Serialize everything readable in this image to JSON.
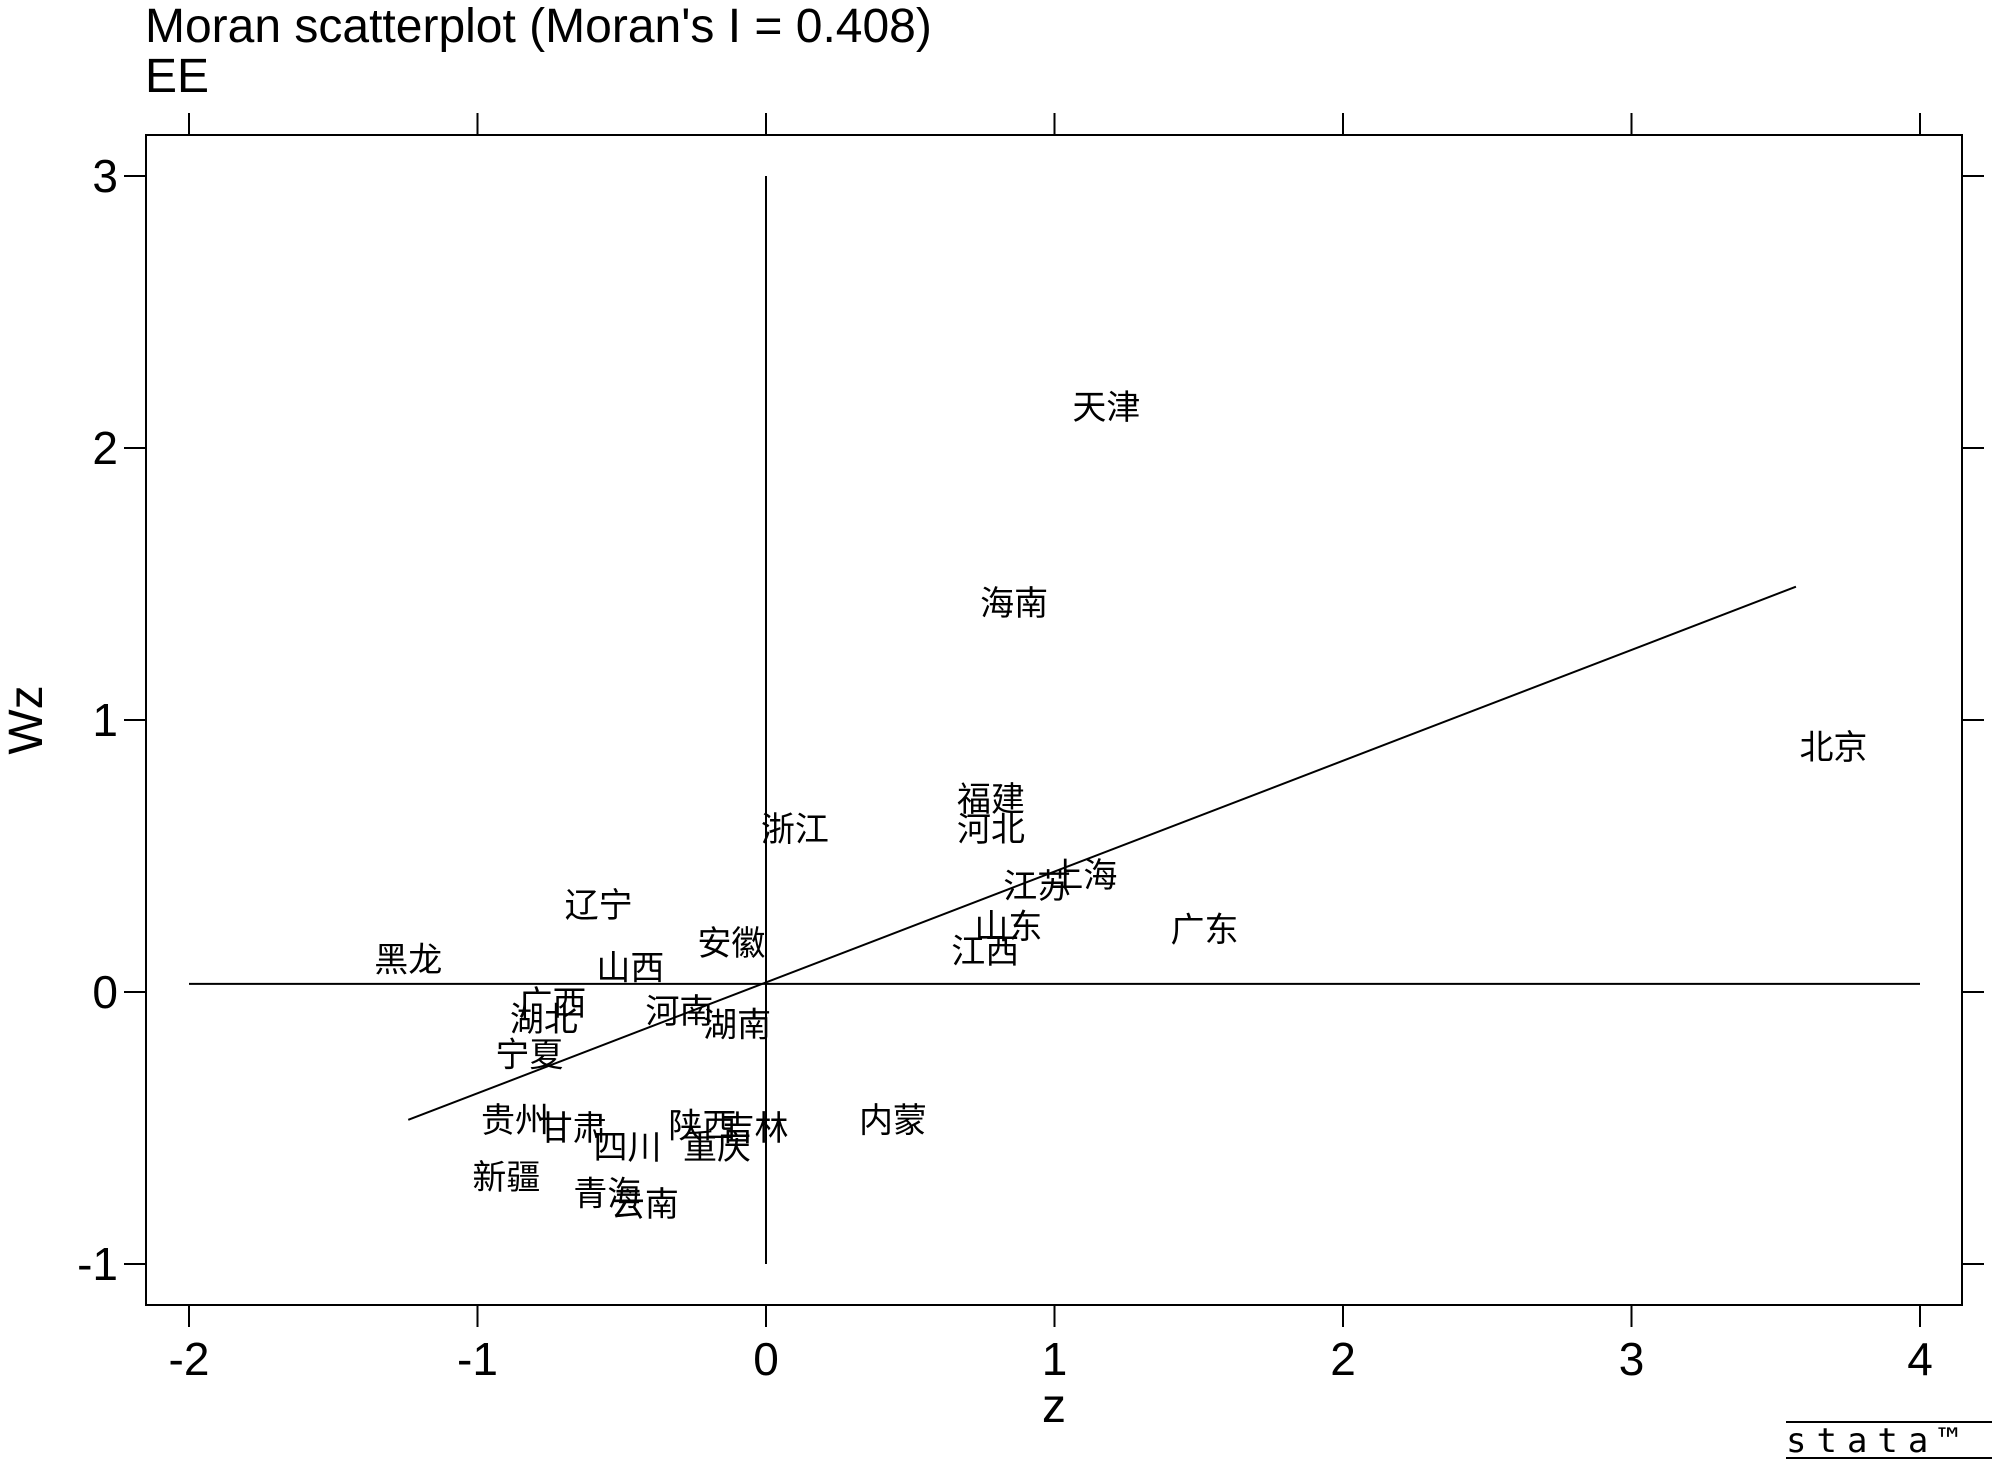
{
  "chart_data": {
    "type": "scatter",
    "title": "Moran scatterplot (Moran's I = 0.408)",
    "subtitle": "EE",
    "xlabel": "z",
    "ylabel": "Wz",
    "xlim": [
      -2,
      4
    ],
    "ylim": [
      -1,
      3
    ],
    "x_ticks": [
      "-2",
      "-1",
      "0",
      "1",
      "2",
      "3",
      "4"
    ],
    "y_ticks": [
      "-1",
      "0",
      "1",
      "2",
      "3"
    ],
    "reference_lines": {
      "x": 0,
      "y": 0.03
    },
    "fit_line": {
      "x": [
        -1.24,
        3.57
      ],
      "y": [
        -0.47,
        1.49
      ]
    },
    "points": [
      {
        "label": "天津",
        "x": 1.18,
        "y": 2.15
      },
      {
        "label": "海南",
        "x": 0.86,
        "y": 1.43
      },
      {
        "label": "北京",
        "x": 3.7,
        "y": 0.9
      },
      {
        "label": "福建",
        "x": 0.78,
        "y": 0.71
      },
      {
        "label": "河北",
        "x": 0.78,
        "y": 0.6
      },
      {
        "label": "浙江",
        "x": 0.1,
        "y": 0.6
      },
      {
        "label": "上海",
        "x": 1.1,
        "y": 0.43
      },
      {
        "label": "江苏",
        "x": 0.94,
        "y": 0.39
      },
      {
        "label": "辽宁",
        "x": -0.58,
        "y": 0.32
      },
      {
        "label": "广东",
        "x": 1.52,
        "y": 0.23
      },
      {
        "label": "山东",
        "x": 0.84,
        "y": 0.24
      },
      {
        "label": "安徽",
        "x": -0.12,
        "y": 0.18
      },
      {
        "label": "江西",
        "x": 0.76,
        "y": 0.15
      },
      {
        "label": "黑龙",
        "x": -1.24,
        "y": 0.12
      },
      {
        "label": "山西",
        "x": -0.47,
        "y": 0.09
      },
      {
        "label": "广西",
        "x": -0.74,
        "y": -0.04
      },
      {
        "label": "河南",
        "x": -0.3,
        "y": -0.07
      },
      {
        "label": "湖北",
        "x": -0.77,
        "y": -0.1
      },
      {
        "label": "湖南",
        "x": -0.1,
        "y": -0.12
      },
      {
        "label": "宁夏",
        "x": -0.82,
        "y": -0.23
      },
      {
        "label": "贵州",
        "x": -0.87,
        "y": -0.47
      },
      {
        "label": "甘肃",
        "x": -0.67,
        "y": -0.5
      },
      {
        "label": "陕西",
        "x": -0.22,
        "y": -0.49
      },
      {
        "label": "吉林",
        "x": -0.04,
        "y": -0.5
      },
      {
        "label": "内蒙",
        "x": 0.44,
        "y": -0.47
      },
      {
        "label": "四川",
        "x": -0.48,
        "y": -0.57
      },
      {
        "label": "重庆",
        "x": -0.17,
        "y": -0.57
      },
      {
        "label": "新疆",
        "x": -0.9,
        "y": -0.68
      },
      {
        "label": "青海",
        "x": -0.55,
        "y": -0.74
      },
      {
        "label": "云南",
        "x": -0.42,
        "y": -0.78
      }
    ]
  },
  "branding": {
    "logo": "stata™"
  }
}
